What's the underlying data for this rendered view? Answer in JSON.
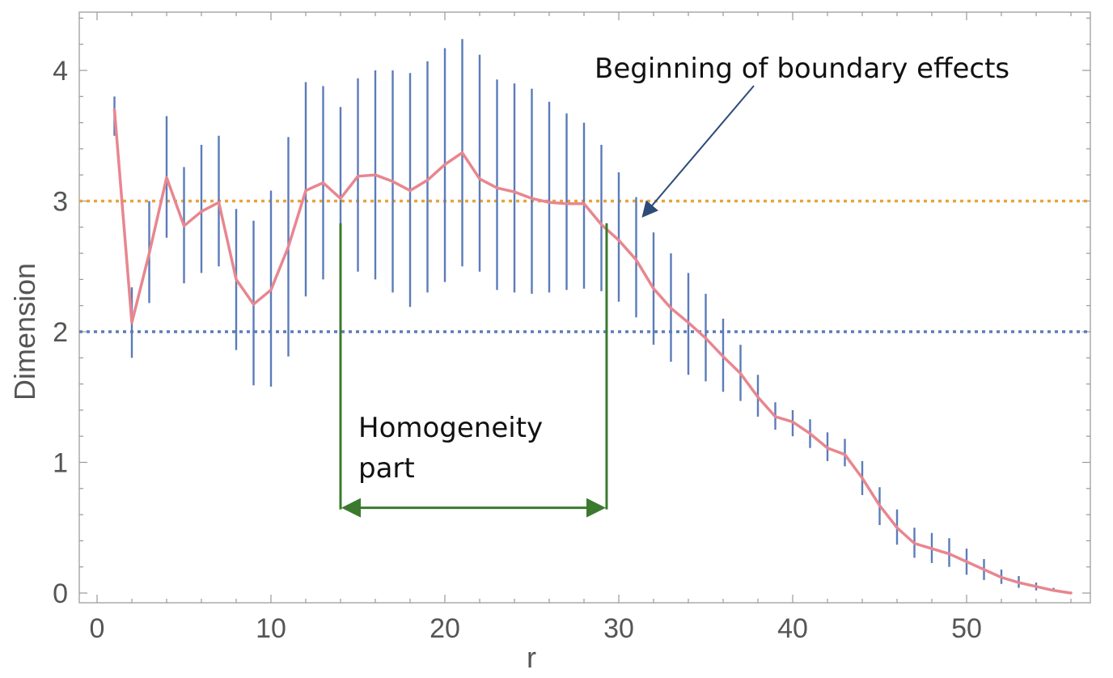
{
  "chart_data": {
    "type": "line",
    "xlabel": "r",
    "ylabel": "Dimension",
    "xlim": [
      0,
      57
    ],
    "ylim": [
      0,
      4.5
    ],
    "x_ticks": [
      "0",
      "10",
      "20",
      "30",
      "40",
      "50"
    ],
    "y_ticks": [
      "0",
      "1",
      "2",
      "3",
      "4"
    ],
    "grid": false,
    "series": [
      {
        "role": "mean",
        "color": "#e8868f",
        "x": [
          1,
          2,
          3,
          4,
          5,
          6,
          7,
          8,
          9,
          10,
          11,
          12,
          13,
          14,
          15,
          16,
          17,
          18,
          19,
          20,
          21,
          22,
          23,
          24,
          25,
          26,
          27,
          28,
          29,
          30,
          31,
          32,
          33,
          34,
          35,
          36,
          37,
          38,
          39,
          40,
          41,
          42,
          43,
          44,
          45,
          46,
          47,
          48,
          49,
          50,
          51,
          52,
          53,
          54,
          55,
          56
        ],
        "values": [
          3.7,
          2.07,
          2.6,
          3.18,
          2.81,
          2.92,
          2.99,
          2.4,
          2.21,
          2.32,
          2.65,
          3.08,
          3.14,
          3.02,
          3.19,
          3.2,
          3.15,
          3.08,
          3.16,
          3.28,
          3.37,
          3.17,
          3.1,
          3.07,
          3.02,
          2.99,
          2.98,
          2.98,
          2.82,
          2.7,
          2.55,
          2.33,
          2.18,
          2.07,
          1.95,
          1.81,
          1.68,
          1.5,
          1.35,
          1.31,
          1.22,
          1.11,
          1.06,
          0.88,
          0.67,
          0.5,
          0.38,
          0.34,
          0.3,
          0.24,
          0.18,
          0.12,
          0.08,
          0.05,
          0.02,
          0.0
        ]
      }
    ],
    "error_bars": {
      "color": "#5b7cb8",
      "x": [
        1,
        2,
        3,
        4,
        5,
        6,
        7,
        8,
        9,
        10,
        11,
        12,
        13,
        14,
        15,
        16,
        17,
        18,
        19,
        20,
        21,
        22,
        23,
        24,
        25,
        26,
        27,
        28,
        29,
        30,
        31,
        32,
        33,
        34,
        35,
        36,
        37,
        38,
        39,
        40,
        41,
        42,
        43,
        44,
        45,
        46,
        47,
        48,
        49,
        50,
        51,
        52,
        53,
        54,
        55,
        56
      ],
      "lower": [
        3.5,
        1.8,
        2.22,
        2.72,
        2.37,
        2.45,
        2.5,
        1.86,
        1.59,
        1.58,
        1.81,
        2.27,
        2.4,
        2.32,
        2.46,
        2.4,
        2.3,
        2.19,
        2.3,
        2.38,
        2.5,
        2.46,
        2.32,
        2.3,
        2.29,
        2.3,
        2.32,
        2.33,
        2.31,
        2.23,
        2.11,
        1.9,
        1.77,
        1.67,
        1.62,
        1.54,
        1.47,
        1.35,
        1.25,
        1.2,
        1.11,
        1.01,
        0.97,
        0.75,
        0.52,
        0.37,
        0.27,
        0.23,
        0.2,
        0.14,
        0.1,
        0.07,
        0.04,
        0.02,
        0.01,
        0.0
      ],
      "upper": [
        3.8,
        2.34,
        3.0,
        3.65,
        3.26,
        3.43,
        3.5,
        2.94,
        2.85,
        3.08,
        3.49,
        3.91,
        3.88,
        3.72,
        3.94,
        4.0,
        4.0,
        3.98,
        4.07,
        4.17,
        4.24,
        4.12,
        3.93,
        3.9,
        3.86,
        3.76,
        3.67,
        3.6,
        3.43,
        3.22,
        3.03,
        2.76,
        2.6,
        2.45,
        2.29,
        2.1,
        1.9,
        1.67,
        1.46,
        1.4,
        1.33,
        1.23,
        1.18,
        1.01,
        0.81,
        0.64,
        0.5,
        0.46,
        0.42,
        0.34,
        0.26,
        0.18,
        0.13,
        0.08,
        0.04,
        0.01
      ]
    },
    "reference_lines": [
      {
        "y": 3,
        "color": "#e8a33b",
        "style": "dotted"
      },
      {
        "y": 2,
        "color": "#5b7cb8",
        "style": "dotted"
      }
    ],
    "annotations": {
      "boundary_text": "Beginning of boundary effects",
      "homogeneity_line1": "Homogeneity",
      "homogeneity_line2": "part",
      "homogeneity_start_x": 14,
      "homogeneity_end_x": 29.3,
      "homogeneity_top_y": 2.83,
      "homogeneity_arrow_y": 0.64,
      "homogeneity_color": "#3b7a2e",
      "boundary_arrow_color": "#2d4b78"
    }
  }
}
